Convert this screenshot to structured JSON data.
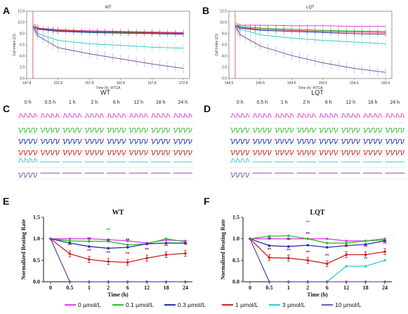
{
  "panel_letters": [
    "A",
    "B",
    "C",
    "D",
    "E",
    "F"
  ],
  "legend": [
    {
      "label": "0 µmol/L",
      "color": "#dd44dd"
    },
    {
      "label": "0.1 µmol/L",
      "color": "#33bb33"
    },
    {
      "label": "0.3 µmol/L",
      "color": "#2233aa"
    },
    {
      "label": "1 µmol/L",
      "color": "#cc2222"
    },
    {
      "label": "3 µmol/L",
      "color": "#33cccc"
    },
    {
      "label": "10 µmol/L",
      "color": "#7755aa"
    }
  ],
  "trace_panels": [
    {
      "title": "WT",
      "times": [
        "0 h",
        "0.5 h",
        "1 h",
        "2 h",
        "6 h",
        "12 h",
        "18 h",
        "24 h"
      ]
    },
    {
      "title": "LQT",
      "times": [
        "0 h",
        "0.5 h",
        "1 h",
        "2 h",
        "6 h",
        "12 h",
        "18 h",
        "24 h"
      ]
    }
  ],
  "chart_data": [
    {
      "type": "line",
      "title": "WT",
      "xlabel": "Time (h) -RTCA",
      "ylabel": "Cell Index (CI)",
      "xticks": [
        "147.8",
        "152.8",
        "157.8",
        "162.8",
        "167.8",
        "172.8"
      ],
      "xlim": [
        147.8,
        173.8
      ],
      "ylim": [
        0,
        12
      ],
      "yticks": [
        "0.0",
        "2.0",
        "4.0",
        "6.0",
        "8.0",
        "10.0",
        "12.0"
      ],
      "series": [
        {
          "color": "#dd44dd",
          "x": [
            148.8,
            149.6,
            152.8,
            157.8,
            162.8,
            167.8,
            172.8
          ],
          "y": [
            9.3,
            9.0,
            8.7,
            8.5,
            8.4,
            8.3,
            8.2
          ]
        },
        {
          "color": "#33bb33",
          "x": [
            148.8,
            149.6,
            152.8,
            157.8,
            162.8,
            167.8,
            172.8
          ],
          "y": [
            9.3,
            8.9,
            8.5,
            8.3,
            8.2,
            8.1,
            8.0
          ]
        },
        {
          "color": "#2233aa",
          "x": [
            148.8,
            149.6,
            152.8,
            157.8,
            162.8,
            167.8,
            172.8
          ],
          "y": [
            9.3,
            8.8,
            8.4,
            8.2,
            8.1,
            8.0,
            7.9
          ]
        },
        {
          "color": "#cc2222",
          "x": [
            148.8,
            149.6,
            152.8,
            157.8,
            162.8,
            167.8,
            172.8
          ],
          "y": [
            9.3,
            8.9,
            8.6,
            8.4,
            8.3,
            8.2,
            8.1
          ]
        },
        {
          "color": "#33cccc",
          "x": [
            148.8,
            149.6,
            152.8,
            157.8,
            162.8,
            167.8,
            172.8
          ],
          "y": [
            9.3,
            8.0,
            6.8,
            6.2,
            5.9,
            5.6,
            5.4
          ]
        },
        {
          "color": "#7755aa",
          "x": [
            148.8,
            149.6,
            152.8,
            157.8,
            162.8,
            167.8,
            172.8
          ],
          "y": [
            9.3,
            7.6,
            5.5,
            4.4,
            3.5,
            2.6,
            1.8
          ]
        }
      ]
    },
    {
      "type": "line",
      "title": "LQT",
      "xlabel": "Time (h) -RTCA",
      "ylabel": "Cell Index (CI)",
      "xticks": [
        "144.5",
        "149.5",
        "154.5",
        "159.5",
        "164.5",
        "169.5"
      ],
      "xlim": [
        144.5,
        170.5
      ],
      "ylim": [
        0,
        12
      ],
      "yticks": [
        "0.0",
        "2.0",
        "4.0",
        "6.0",
        "8.0",
        "10.0",
        "12.0"
      ],
      "series": [
        {
          "color": "#dd44dd",
          "x": [
            145.5,
            146.3,
            149.5,
            154.5,
            159.5,
            164.5,
            169.5
          ],
          "y": [
            9.4,
            9.5,
            9.5,
            9.4,
            9.4,
            9.3,
            9.3
          ]
        },
        {
          "color": "#33bb33",
          "x": [
            145.5,
            146.3,
            149.5,
            154.5,
            159.5,
            164.5,
            169.5
          ],
          "y": [
            9.4,
            9.3,
            9.0,
            8.8,
            8.6,
            8.5,
            8.4
          ]
        },
        {
          "color": "#2233aa",
          "x": [
            145.5,
            146.3,
            149.5,
            154.5,
            159.5,
            164.5,
            169.5
          ],
          "y": [
            9.4,
            9.0,
            8.6,
            8.4,
            8.2,
            8.0,
            7.9
          ]
        },
        {
          "color": "#cc2222",
          "x": [
            145.5,
            146.3,
            149.5,
            154.5,
            159.5,
            164.5,
            169.5
          ],
          "y": [
            9.4,
            9.1,
            8.8,
            8.6,
            8.4,
            8.3,
            8.2
          ]
        },
        {
          "color": "#33cccc",
          "x": [
            145.5,
            146.3,
            149.5,
            154.5,
            159.5,
            164.5,
            169.5
          ],
          "y": [
            9.4,
            8.8,
            7.8,
            7.2,
            6.8,
            6.5,
            6.2
          ]
        },
        {
          "color": "#7755aa",
          "x": [
            145.5,
            146.3,
            149.5,
            154.5,
            159.5,
            164.5,
            169.5
          ],
          "y": [
            9.4,
            7.8,
            5.8,
            4.1,
            2.8,
            1.8,
            1.1
          ]
        }
      ]
    },
    {
      "type": "line",
      "title": "WT",
      "xlabel": "Time (h)",
      "ylabel": "Normalized Beating Rate",
      "categories": [
        "0",
        "0.5",
        "1",
        "2",
        "6",
        "12",
        "18",
        "24"
      ],
      "ylim": [
        0,
        1.5
      ],
      "yticks": [
        "0.0",
        "0.5",
        "1.0",
        "1.5"
      ],
      "series": [
        {
          "color": "#dd44dd",
          "values": [
            1.0,
            1.0,
            1.0,
            0.98,
            0.95,
            0.9,
            0.97,
            0.95
          ]
        },
        {
          "color": "#33bb33",
          "values": [
            1.0,
            0.95,
            0.94,
            0.94,
            0.86,
            0.88,
            1.0,
            0.93
          ]
        },
        {
          "color": "#2233aa",
          "values": [
            1.0,
            0.9,
            0.82,
            0.78,
            0.8,
            0.88,
            0.9,
            0.9
          ]
        },
        {
          "color": "#cc2222",
          "values": [
            1.0,
            0.65,
            0.52,
            0.47,
            0.45,
            0.55,
            0.63,
            0.66
          ]
        },
        {
          "color": "#33cccc",
          "values": [
            1.0,
            0.0,
            0.0,
            0.0,
            0.0,
            0.0,
            0.0,
            0.0
          ]
        },
        {
          "color": "#7755aa",
          "values": [
            1.0,
            0.0,
            0.0,
            0.0,
            0.0,
            0.0,
            0.0,
            0.0
          ]
        }
      ]
    },
    {
      "type": "line",
      "title": "LQT",
      "xlabel": "Time (h)",
      "ylabel": "Normalized Beating Rate",
      "categories": [
        "0",
        "0.5",
        "1",
        "2",
        "6",
        "12",
        "18",
        "24"
      ],
      "ylim": [
        0,
        1.5
      ],
      "yticks": [
        "0.0",
        "0.5",
        "1.0",
        "1.5"
      ],
      "series": [
        {
          "color": "#dd44dd",
          "values": [
            1.0,
            1.0,
            1.0,
            1.0,
            1.0,
            0.95,
            0.95,
            1.0
          ]
        },
        {
          "color": "#33bb33",
          "values": [
            1.0,
            1.06,
            1.07,
            1.0,
            0.9,
            0.9,
            0.95,
            0.97
          ]
        },
        {
          "color": "#2233aa",
          "values": [
            1.0,
            0.84,
            0.82,
            0.85,
            0.8,
            0.84,
            0.87,
            0.95
          ]
        },
        {
          "color": "#cc2222",
          "values": [
            1.0,
            0.56,
            0.55,
            0.5,
            0.42,
            0.63,
            0.63,
            0.7
          ]
        },
        {
          "color": "#33cccc",
          "values": [
            1.0,
            0.0,
            0.0,
            0.0,
            0.0,
            0.36,
            0.36,
            0.5
          ]
        },
        {
          "color": "#7755aa",
          "values": [
            1.0,
            0.0,
            0.0,
            0.0,
            0.0,
            0.0,
            0.0,
            0.0
          ]
        }
      ]
    }
  ]
}
